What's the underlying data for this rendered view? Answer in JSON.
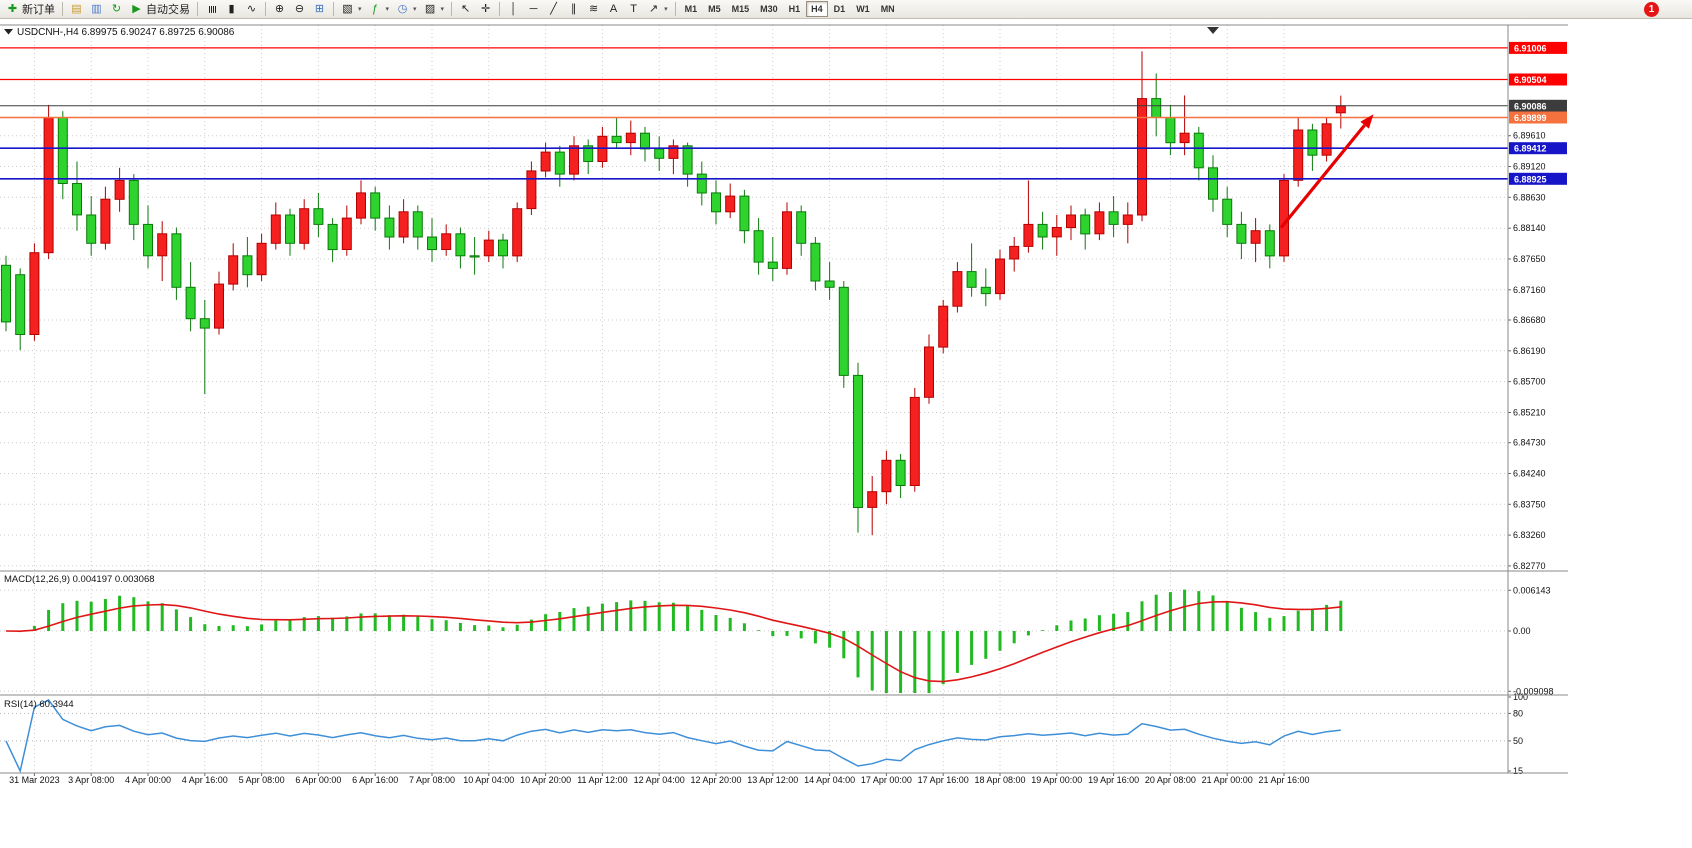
{
  "toolbar": {
    "items": [
      {
        "type": "button",
        "name": "new-order-button",
        "glyph": "✚",
        "glyph_color": "#18991f",
        "label": "新订单"
      },
      {
        "type": "sep"
      },
      {
        "type": "icon",
        "name": "profiles-icon",
        "glyph": "▤",
        "glyph_color": "#c79a2e"
      },
      {
        "type": "icon",
        "name": "print-preview-icon",
        "glyph": "▥",
        "glyph_color": "#4a78c8"
      },
      {
        "type": "icon",
        "name": "refresh-icon",
        "glyph": "↻",
        "glyph_color": "#18991f"
      },
      {
        "type": "button",
        "name": "autotrading-button",
        "glyph": "▶",
        "glyph_color": "#18991f",
        "label": "自动交易"
      },
      {
        "type": "sep"
      },
      {
        "type": "icon",
        "name": "bar-chart-icon",
        "glyph": "≣",
        "rot": 90
      },
      {
        "type": "icon",
        "name": "candlestick-chart-icon",
        "glyph": "▮"
      },
      {
        "type": "icon",
        "name": "line-chart-icon",
        "glyph": "∿"
      },
      {
        "type": "sep"
      },
      {
        "type": "icon",
        "name": "zoom-in-icon",
        "glyph": "⊕"
      },
      {
        "type": "icon",
        "name": "zoom-out-icon",
        "glyph": "⊖"
      },
      {
        "type": "icon",
        "name": "tile-windows-icon",
        "glyph": "⊞",
        "glyph_color": "#3a6fc0"
      },
      {
        "type": "sep"
      },
      {
        "type": "icon",
        "name": "new-chart-icon",
        "glyph": "▧",
        "dropdown": true
      },
      {
        "type": "icon",
        "name": "indicators-icon",
        "glyph": "ƒ",
        "glyph_color": "#18991f",
        "dropdown": true
      },
      {
        "type": "icon",
        "name": "periods-icon",
        "glyph": "◷",
        "glyph_color": "#3a6fc0",
        "dropdown": true
      },
      {
        "type": "icon",
        "name": "templates-icon",
        "glyph": "▨",
        "dropdown": true
      },
      {
        "type": "sep"
      },
      {
        "type": "icon",
        "name": "cursor-icon",
        "glyph": "↖"
      },
      {
        "type": "icon",
        "name": "crosshair-icon",
        "glyph": "✛"
      },
      {
        "type": "sep"
      },
      {
        "type": "icon",
        "name": "vertical-line-icon",
        "glyph": "│"
      },
      {
        "type": "icon",
        "name": "horizontal-line-icon",
        "glyph": "─"
      },
      {
        "type": "icon",
        "name": "trendline-icon",
        "glyph": "╱"
      },
      {
        "type": "icon",
        "name": "channel-icon",
        "glyph": "∥"
      },
      {
        "type": "icon",
        "name": "fibonacci-icon",
        "glyph": "≋"
      },
      {
        "type": "icon",
        "name": "text-icon",
        "glyph": "A"
      },
      {
        "type": "icon",
        "name": "text-label-icon",
        "glyph": "T"
      },
      {
        "type": "icon",
        "name": "arrows-icon",
        "glyph": "↗",
        "dropdown": true
      },
      {
        "type": "sep"
      }
    ],
    "timeframes": [
      "M1",
      "M5",
      "M15",
      "M30",
      "H1",
      "H4",
      "D1",
      "W1",
      "MN"
    ],
    "active_timeframe": "H4",
    "notification_count": "1"
  },
  "chart": {
    "title": "USDCNH-,H4 6.89975 6.90247 6.89725 6.90086",
    "symbol": "USDCNH-",
    "period": "H4",
    "ohlc": {
      "open": "6.89975",
      "high": "6.90247",
      "low": "6.89725",
      "close": "6.90086"
    },
    "price_axis": [
      "6.89610",
      "6.89120",
      "6.88630",
      "6.88140",
      "6.87650",
      "6.87160",
      "6.86680",
      "6.86190",
      "6.85700",
      "6.85210",
      "6.84730",
      "6.84240",
      "6.83750",
      "6.83260",
      "6.82770"
    ],
    "lines": [
      {
        "name": "red-level-line-1",
        "label": "6.91006",
        "price": 6.91006,
        "color": "#fe0000",
        "width": 1.2,
        "draggable": true
      },
      {
        "name": "red-level-line-2",
        "label": "6.90504",
        "price": 6.90504,
        "color": "#fe0000",
        "width": 1.2,
        "draggable": true
      },
      {
        "name": "current-price-line",
        "label": "6.90086",
        "price": 6.90086,
        "color": "#3c3c3c",
        "width": 1,
        "draggable": false
      },
      {
        "name": "orange-level-line",
        "label": "6.89899",
        "price": 6.89899,
        "color": "#f5713d",
        "width": 1.5,
        "draggable": true
      },
      {
        "name": "blue-level-line-1",
        "label": "6.89412",
        "price": 6.89412,
        "color": "#1616c8",
        "width": 1.6,
        "draggable": true
      },
      {
        "name": "blue-level-line-2",
        "label": "6.88925",
        "price": 6.88925,
        "color": "#1616c8",
        "width": 1.6,
        "draggable": true
      }
    ],
    "time_axis": [
      "31 Mar 2023",
      "3 Apr 08:00",
      "4 Apr 00:00",
      "4 Apr 16:00",
      "5 Apr 08:00",
      "6 Apr 00:00",
      "6 Apr 16:00",
      "7 Apr 08:00",
      "10 Apr 04:00",
      "10 Apr 20:00",
      "11 Apr 12:00",
      "12 Apr 04:00",
      "12 Apr 20:00",
      "13 Apr 12:00",
      "14 Apr 04:00",
      "17 Apr 00:00",
      "17 Apr 16:00",
      "18 Apr 08:00",
      "19 Apr 00:00",
      "19 Apr 16:00",
      "20 Apr 08:00",
      "21 Apr 00:00",
      "21 Apr 16:00"
    ],
    "annotation": {
      "type": "arrow",
      "color": "#e60000",
      "from_bar": 89.8,
      "from_price": 6.8815,
      "to_bar": 96.3,
      "to_price": 6.8995
    }
  },
  "chart_data": {
    "type": "candlestick",
    "symbol": "USDCNH-",
    "timeframe": "H4",
    "up_color": "#f52020",
    "down_color": "#2ed32e",
    "price_range": [
      6.8269,
      6.9137
    ],
    "candles": [
      [
        6.8755,
        6.877,
        6.865,
        6.8665
      ],
      [
        6.874,
        6.875,
        6.862,
        6.8645
      ],
      [
        6.8645,
        6.879,
        6.8635,
        6.8775
      ],
      [
        6.8775,
        6.901,
        6.8765,
        6.899
      ],
      [
        6.899,
        6.9,
        6.886,
        6.8885
      ],
      [
        6.8885,
        6.892,
        6.881,
        6.8835
      ],
      [
        6.8835,
        6.8865,
        6.877,
        6.879
      ],
      [
        6.879,
        6.888,
        6.878,
        6.886
      ],
      [
        6.886,
        6.891,
        6.884,
        6.889
      ],
      [
        6.889,
        6.89,
        6.8795,
        6.882
      ],
      [
        6.882,
        6.885,
        6.875,
        6.877
      ],
      [
        6.877,
        6.8825,
        6.873,
        6.8805
      ],
      [
        6.8805,
        6.8815,
        6.87,
        6.872
      ],
      [
        6.872,
        6.876,
        6.865,
        6.867
      ],
      [
        6.867,
        6.87,
        6.855,
        6.8655
      ],
      [
        6.8655,
        6.8745,
        6.8645,
        6.8725
      ],
      [
        6.8725,
        6.879,
        6.8715,
        6.877
      ],
      [
        6.877,
        6.88,
        6.872,
        6.874
      ],
      [
        6.874,
        6.8805,
        6.873,
        6.879
      ],
      [
        6.879,
        6.8855,
        6.878,
        6.8835
      ],
      [
        6.8835,
        6.8845,
        6.877,
        6.879
      ],
      [
        6.879,
        6.886,
        6.878,
        6.8845
      ],
      [
        6.8845,
        6.887,
        6.88,
        6.882
      ],
      [
        6.882,
        6.883,
        6.876,
        6.878
      ],
      [
        6.878,
        6.885,
        6.877,
        6.883
      ],
      [
        6.883,
        6.889,
        6.882,
        6.887
      ],
      [
        6.887,
        6.888,
        6.881,
        6.883
      ],
      [
        6.883,
        6.885,
        6.878,
        6.88
      ],
      [
        6.88,
        6.886,
        6.879,
        6.884
      ],
      [
        6.884,
        6.885,
        6.878,
        6.88
      ],
      [
        6.88,
        6.883,
        6.876,
        6.878
      ],
      [
        6.878,
        6.882,
        6.877,
        6.8805
      ],
      [
        6.8805,
        6.8815,
        6.875,
        6.877
      ],
      [
        6.877,
        6.88,
        6.874,
        6.877
      ],
      [
        6.877,
        6.881,
        6.876,
        6.8795
      ],
      [
        6.8795,
        6.8805,
        6.875,
        6.877
      ],
      [
        6.877,
        6.8855,
        6.876,
        6.8845
      ],
      [
        6.8845,
        6.892,
        6.8835,
        6.8905
      ],
      [
        6.8905,
        6.895,
        6.8895,
        6.8935
      ],
      [
        6.8935,
        6.8945,
        6.888,
        6.89
      ],
      [
        6.89,
        6.896,
        6.889,
        6.8945
      ],
      [
        6.8945,
        6.8955,
        6.89,
        6.892
      ],
      [
        6.892,
        6.8975,
        6.891,
        6.896
      ],
      [
        6.896,
        6.899,
        6.894,
        6.895
      ],
      [
        6.895,
        6.8985,
        6.893,
        6.8965
      ],
      [
        6.8965,
        6.8975,
        6.892,
        6.894
      ],
      [
        6.894,
        6.896,
        6.8905,
        6.8925
      ],
      [
        6.8925,
        6.8955,
        6.89,
        6.8945
      ],
      [
        6.8945,
        6.895,
        6.888,
        6.89
      ],
      [
        6.89,
        6.892,
        6.885,
        6.887
      ],
      [
        6.887,
        6.889,
        6.882,
        6.884
      ],
      [
        6.884,
        6.8885,
        6.883,
        6.8865
      ],
      [
        6.8865,
        6.8875,
        6.879,
        6.881
      ],
      [
        6.881,
        6.883,
        6.874,
        6.876
      ],
      [
        6.876,
        6.88,
        6.873,
        6.875
      ],
      [
        6.875,
        6.8855,
        6.874,
        6.884
      ],
      [
        6.884,
        6.885,
        6.877,
        6.879
      ],
      [
        6.879,
        6.88,
        6.8715,
        6.873
      ],
      [
        6.873,
        6.876,
        6.87,
        6.872
      ],
      [
        6.872,
        6.873,
        6.856,
        6.858
      ],
      [
        6.858,
        6.86,
        6.833,
        6.837
      ],
      [
        6.837,
        6.842,
        6.8326,
        6.8395
      ],
      [
        6.8395,
        6.846,
        6.8375,
        6.8445
      ],
      [
        6.8445,
        6.8455,
        6.8385,
        6.8405
      ],
      [
        6.8405,
        6.856,
        6.8395,
        6.8545
      ],
      [
        6.8545,
        6.8645,
        6.8535,
        6.8625
      ],
      [
        6.8625,
        6.87,
        6.8615,
        6.869
      ],
      [
        6.869,
        6.876,
        6.868,
        6.8745
      ],
      [
        6.8745,
        6.879,
        6.8705,
        6.872
      ],
      [
        6.872,
        6.875,
        6.869,
        6.871
      ],
      [
        6.871,
        6.878,
        6.87,
        6.8765
      ],
      [
        6.8765,
        6.88,
        6.8745,
        6.8785
      ],
      [
        6.8785,
        6.889,
        6.8775,
        6.882
      ],
      [
        6.882,
        6.884,
        6.878,
        6.88
      ],
      [
        6.88,
        6.8835,
        6.877,
        6.8815
      ],
      [
        6.8815,
        6.885,
        6.8795,
        6.8835
      ],
      [
        6.8835,
        6.8845,
        6.878,
        6.8805
      ],
      [
        6.8805,
        6.8855,
        6.8795,
        6.884
      ],
      [
        6.884,
        6.8865,
        6.88,
        6.882
      ],
      [
        6.882,
        6.8855,
        6.879,
        6.8835
      ],
      [
        6.8835,
        6.9095,
        6.8825,
        6.902
      ],
      [
        6.902,
        6.906,
        6.896,
        6.899
      ],
      [
        6.899,
        6.901,
        6.893,
        6.895
      ],
      [
        6.895,
        6.9025,
        6.893,
        6.8965
      ],
      [
        6.8965,
        6.8975,
        6.889,
        6.891
      ],
      [
        6.891,
        6.893,
        6.884,
        6.886
      ],
      [
        6.886,
        6.888,
        6.88,
        6.882
      ],
      [
        6.882,
        6.884,
        6.8765,
        6.879
      ],
      [
        6.879,
        6.883,
        6.876,
        6.881
      ],
      [
        6.881,
        6.882,
        6.875,
        6.877
      ],
      [
        6.877,
        6.89,
        6.876,
        6.889
      ],
      [
        6.889,
        6.899,
        6.888,
        6.897
      ],
      [
        6.897,
        6.898,
        6.8905,
        6.893
      ],
      [
        6.893,
        6.899,
        6.892,
        6.898
      ],
      [
        6.89975,
        6.90247,
        6.89725,
        6.90086
      ]
    ]
  },
  "macd": {
    "label": "MACD(12,26,9) 0.004197 0.003068",
    "params": [
      12,
      26,
      9
    ],
    "value": "0.004197",
    "signal": "0.003068",
    "axis": [
      "0.006143",
      "0.00",
      "-0.009098"
    ],
    "histogram_color": "#21ba21",
    "signal_color": "#e01616"
  },
  "rsi": {
    "label": "RSI(14) 60.3944",
    "period": 14,
    "value": "60.3944",
    "axis": [
      "100",
      "80",
      "50",
      "15"
    ],
    "levels": [
      80,
      50
    ],
    "line_color": "#3e8fd8"
  }
}
